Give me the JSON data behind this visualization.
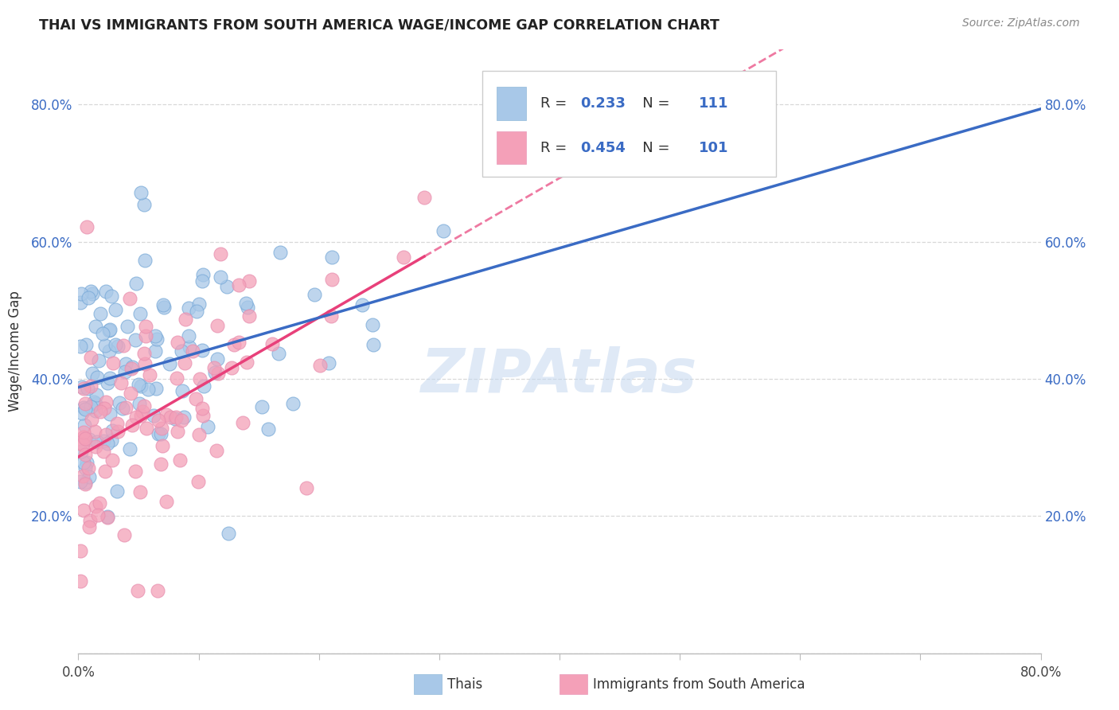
{
  "title": "THAI VS IMMIGRANTS FROM SOUTH AMERICA WAGE/INCOME GAP CORRELATION CHART",
  "source": "Source: ZipAtlas.com",
  "ylabel": "Wage/Income Gap",
  "series1_label": "Thais",
  "series2_label": "Immigrants from South America",
  "series1_R": "0.233",
  "series1_N": "111",
  "series2_R": "0.454",
  "series2_N": "101",
  "series1_color": "#a8c8e8",
  "series2_color": "#f4a0b8",
  "series1_line_color": "#3a6bc4",
  "series2_line_color": "#e8407a",
  "watermark": "ZIPAtlas",
  "background_color": "#ffffff",
  "grid_color": "#d8d8d8",
  "xlim": [
    0.0,
    0.8
  ],
  "ylim": [
    0.0,
    0.88
  ],
  "ytick_vals": [
    0.0,
    0.2,
    0.4,
    0.6,
    0.8
  ],
  "xtick_vals": [
    0.0,
    0.1,
    0.2,
    0.3,
    0.4,
    0.5,
    0.6,
    0.7,
    0.8
  ],
  "legend_R_color": "#3a6bc4",
  "legend_text_color": "#333333",
  "title_color": "#222222",
  "source_color": "#888888",
  "ylabel_color": "#333333"
}
